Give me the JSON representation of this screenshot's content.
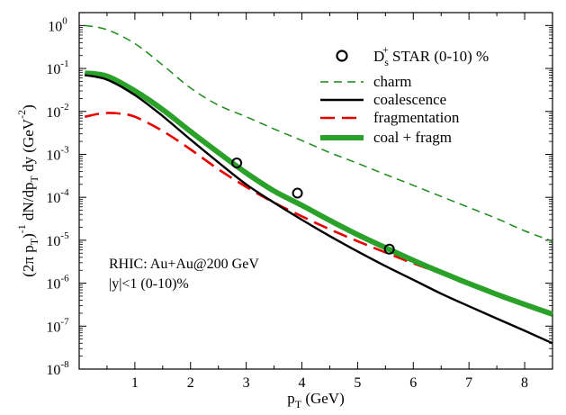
{
  "chart_data": {
    "type": "line",
    "x_axis": {
      "label": "p",
      "label_sub": "T",
      "label_tail": " (GeV)",
      "range": [
        0,
        8.5
      ],
      "ticks": [
        1,
        2,
        3,
        4,
        5,
        6,
        7,
        8
      ],
      "tick_labels": [
        "1",
        "2",
        "3",
        "4",
        "5",
        "6",
        "7",
        "8"
      ],
      "scale": "linear"
    },
    "y_axis": {
      "label": "(2π p_T)^-1 dN/dp_T dy (GeV^-2)",
      "scale": "log",
      "range": [
        1e-08,
        2
      ],
      "ticks": [
        1e-08,
        1e-07,
        1e-06,
        1e-05,
        0.0001,
        0.001,
        0.01,
        0.1,
        1
      ],
      "tick_labels": [
        {
          "base": "10",
          "exp": "-8"
        },
        {
          "base": "10",
          "exp": "-7"
        },
        {
          "base": "10",
          "exp": "-6"
        },
        {
          "base": "10",
          "exp": "-5"
        },
        {
          "base": "10",
          "exp": "-4"
        },
        {
          "base": "10",
          "exp": "-3"
        },
        {
          "base": "10",
          "exp": "-2"
        },
        {
          "base": "10",
          "exp": "-1"
        },
        {
          "base": "10",
          "exp": "0"
        }
      ]
    },
    "series": [
      {
        "name": "charm",
        "color": "#1a8a1a",
        "style": "dashed-thin",
        "x": [
          0.1,
          0.5,
          1,
          1.5,
          2,
          2.5,
          3,
          3.5,
          4,
          4.5,
          5,
          5.5,
          6,
          6.5,
          7,
          7.5,
          8,
          8.5
        ],
        "y": [
          1.0,
          0.8,
          0.38,
          0.12,
          0.035,
          0.014,
          0.0075,
          0.0039,
          0.0021,
          0.0011,
          0.00062,
          0.00034,
          0.00019,
          0.000105,
          5.8e-05,
          3.2e-05,
          1.65e-05,
          9.5e-06
        ]
      },
      {
        "name": "coalescence",
        "color": "#000000",
        "style": "solid",
        "x": [
          0.1,
          0.5,
          1,
          1.5,
          2,
          2.5,
          3,
          3.5,
          4,
          4.5,
          5,
          5.5,
          6,
          6.5,
          7,
          7.5,
          8,
          8.5
        ],
        "y": [
          0.07,
          0.055,
          0.024,
          0.0078,
          0.0022,
          0.00065,
          0.0002,
          7.5e-05,
          3e-05,
          1.25e-05,
          5.5e-06,
          2.5e-06,
          1.2e-06,
          5.7e-07,
          2.9e-07,
          1.5e-07,
          7.8e-08,
          4e-08
        ]
      },
      {
        "name": "fragmentation",
        "color": "#e60000",
        "style": "dashed-thick",
        "x": [
          0.1,
          0.4,
          0.7,
          1,
          1.5,
          2,
          2.5,
          3,
          3.5,
          4,
          4.5,
          5,
          5.5,
          6,
          6.5,
          7,
          7.5,
          8,
          8.5
        ],
        "y": [
          0.0075,
          0.009,
          0.009,
          0.0075,
          0.0035,
          0.0013,
          0.00045,
          0.000175,
          7.5e-05,
          3.6e-05,
          1.8e-05,
          9.5e-06,
          5.2e-06,
          2.9e-06,
          1.7e-06,
          9.8e-07,
          5.8e-07,
          3.4e-07,
          2e-07
        ]
      },
      {
        "name": "coal + fragm",
        "color": "#2aa22a",
        "style": "solid-thick",
        "x": [
          0.1,
          0.5,
          1,
          1.5,
          2,
          2.5,
          3,
          3.5,
          4,
          4.5,
          5,
          5.5,
          6,
          6.5,
          7,
          7.5,
          8,
          8.5
        ],
        "y": [
          0.078,
          0.066,
          0.03,
          0.011,
          0.0034,
          0.0011,
          0.00037,
          0.00014,
          6.5e-05,
          2.9e-05,
          1.35e-05,
          6.7e-06,
          3.4e-06,
          1.8e-06,
          9.8e-07,
          5.5e-07,
          3.2e-07,
          1.9e-07
        ]
      }
    ],
    "points": {
      "name": "D_s^+ STAR (0-10) %",
      "x": [
        2.83,
        3.92,
        5.57
      ],
      "y": [
        0.00063,
        0.000125,
        6.2e-06
      ]
    },
    "legend": {
      "placement": "top-right",
      "marker_label": {
        "main": "D",
        "sub": "s",
        "sup": "+",
        "tail": "  STAR (0-10) %"
      },
      "entries": [
        "charm",
        "coalescence",
        "fragmentation",
        "coal + fragm"
      ]
    },
    "annotations": [
      "RHIC: Au+Au@200 GeV",
      " |y|<1 (0-10)%"
    ]
  }
}
